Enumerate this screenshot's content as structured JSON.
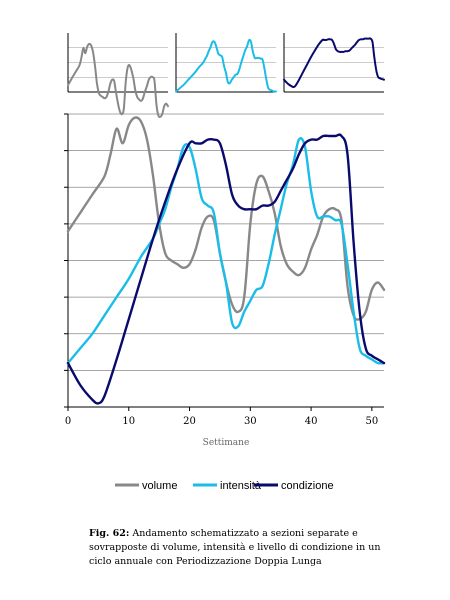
{
  "chart_data": {
    "type": "line",
    "xlabel": "Settimane",
    "xlim": [
      0,
      52
    ],
    "xticks": [
      0,
      10,
      20,
      30,
      40,
      50
    ],
    "ylim": [
      0,
      8
    ],
    "grid": true,
    "legend_position": "bottom",
    "series": [
      {
        "name": "volume",
        "color": "#888888",
        "x": [
          0,
          2,
          4,
          6,
          7,
          8,
          9,
          10,
          11,
          12,
          13,
          14,
          15,
          16,
          17,
          18,
          19,
          20,
          21,
          22,
          23,
          24,
          25,
          26,
          27,
          28,
          29,
          30,
          31,
          32,
          33,
          34,
          35,
          36,
          37,
          38,
          39,
          40,
          41,
          42,
          43,
          44,
          45,
          46,
          47,
          48,
          49,
          50,
          51,
          52
        ],
        "y": [
          4.8,
          5.3,
          5.8,
          6.3,
          6.9,
          7.6,
          7.2,
          7.7,
          7.9,
          7.8,
          7.3,
          6.3,
          5.0,
          4.2,
          4.0,
          3.9,
          3.8,
          3.9,
          4.3,
          4.9,
          5.2,
          5.1,
          4.2,
          3.4,
          2.8,
          2.6,
          3.0,
          5.0,
          6.1,
          6.3,
          5.9,
          5.3,
          4.4,
          3.9,
          3.7,
          3.6,
          3.8,
          4.3,
          4.7,
          5.2,
          5.4,
          5.4,
          5.1,
          3.3,
          2.5,
          2.4,
          2.6,
          3.2,
          3.4,
          3.2
        ]
      },
      {
        "name": "intensità",
        "color": "#19bde8",
        "x": [
          0,
          2,
          4,
          6,
          8,
          10,
          12,
          14,
          15,
          16,
          17,
          18,
          19,
          20,
          21,
          22,
          23,
          24,
          25,
          26,
          27,
          28,
          29,
          30,
          31,
          32,
          33,
          34,
          35,
          36,
          37,
          38,
          39,
          40,
          41,
          42,
          43,
          44,
          45,
          46,
          47,
          48,
          49,
          50,
          51,
          52
        ],
        "y": [
          1.2,
          1.6,
          2.0,
          2.5,
          3.0,
          3.5,
          4.1,
          4.6,
          5.0,
          5.4,
          6.0,
          6.5,
          7.1,
          7.1,
          6.5,
          5.7,
          5.5,
          5.3,
          4.2,
          3.4,
          2.3,
          2.2,
          2.6,
          2.9,
          3.2,
          3.3,
          3.9,
          4.7,
          5.4,
          6.1,
          6.6,
          7.3,
          7.1,
          5.9,
          5.2,
          5.2,
          5.2,
          5.1,
          5.0,
          3.9,
          2.6,
          1.6,
          1.4,
          1.3,
          1.2,
          1.2
        ]
      },
      {
        "name": "condizione",
        "color": "#0a0a6e",
        "x": [
          0,
          2,
          4,
          5,
          6,
          8,
          10,
          12,
          14,
          16,
          18,
          20,
          21,
          22,
          23,
          24,
          25,
          26,
          27,
          28,
          29,
          30,
          31,
          32,
          33,
          34,
          35,
          36,
          37,
          38,
          39,
          40,
          41,
          42,
          43,
          44,
          45,
          46,
          47,
          48,
          49,
          50,
          51,
          52
        ],
        "y": [
          1.2,
          0.6,
          0.2,
          0.1,
          0.3,
          1.3,
          2.4,
          3.5,
          4.6,
          5.6,
          6.5,
          7.2,
          7.2,
          7.2,
          7.3,
          7.3,
          7.2,
          6.6,
          5.8,
          5.5,
          5.4,
          5.4,
          5.4,
          5.5,
          5.5,
          5.6,
          5.9,
          6.2,
          6.5,
          6.9,
          7.2,
          7.3,
          7.3,
          7.4,
          7.4,
          7.4,
          7.4,
          6.9,
          4.5,
          2.6,
          1.6,
          1.4,
          1.3,
          1.2
        ]
      }
    ]
  },
  "caption": {
    "label": "Fig. 62:",
    "text": "Andamento schematizzato a sezioni separate e sovrapposte di volume, intensità e livello di condizione in un ciclo annuale con Periodizzazione Doppia Lunga"
  }
}
